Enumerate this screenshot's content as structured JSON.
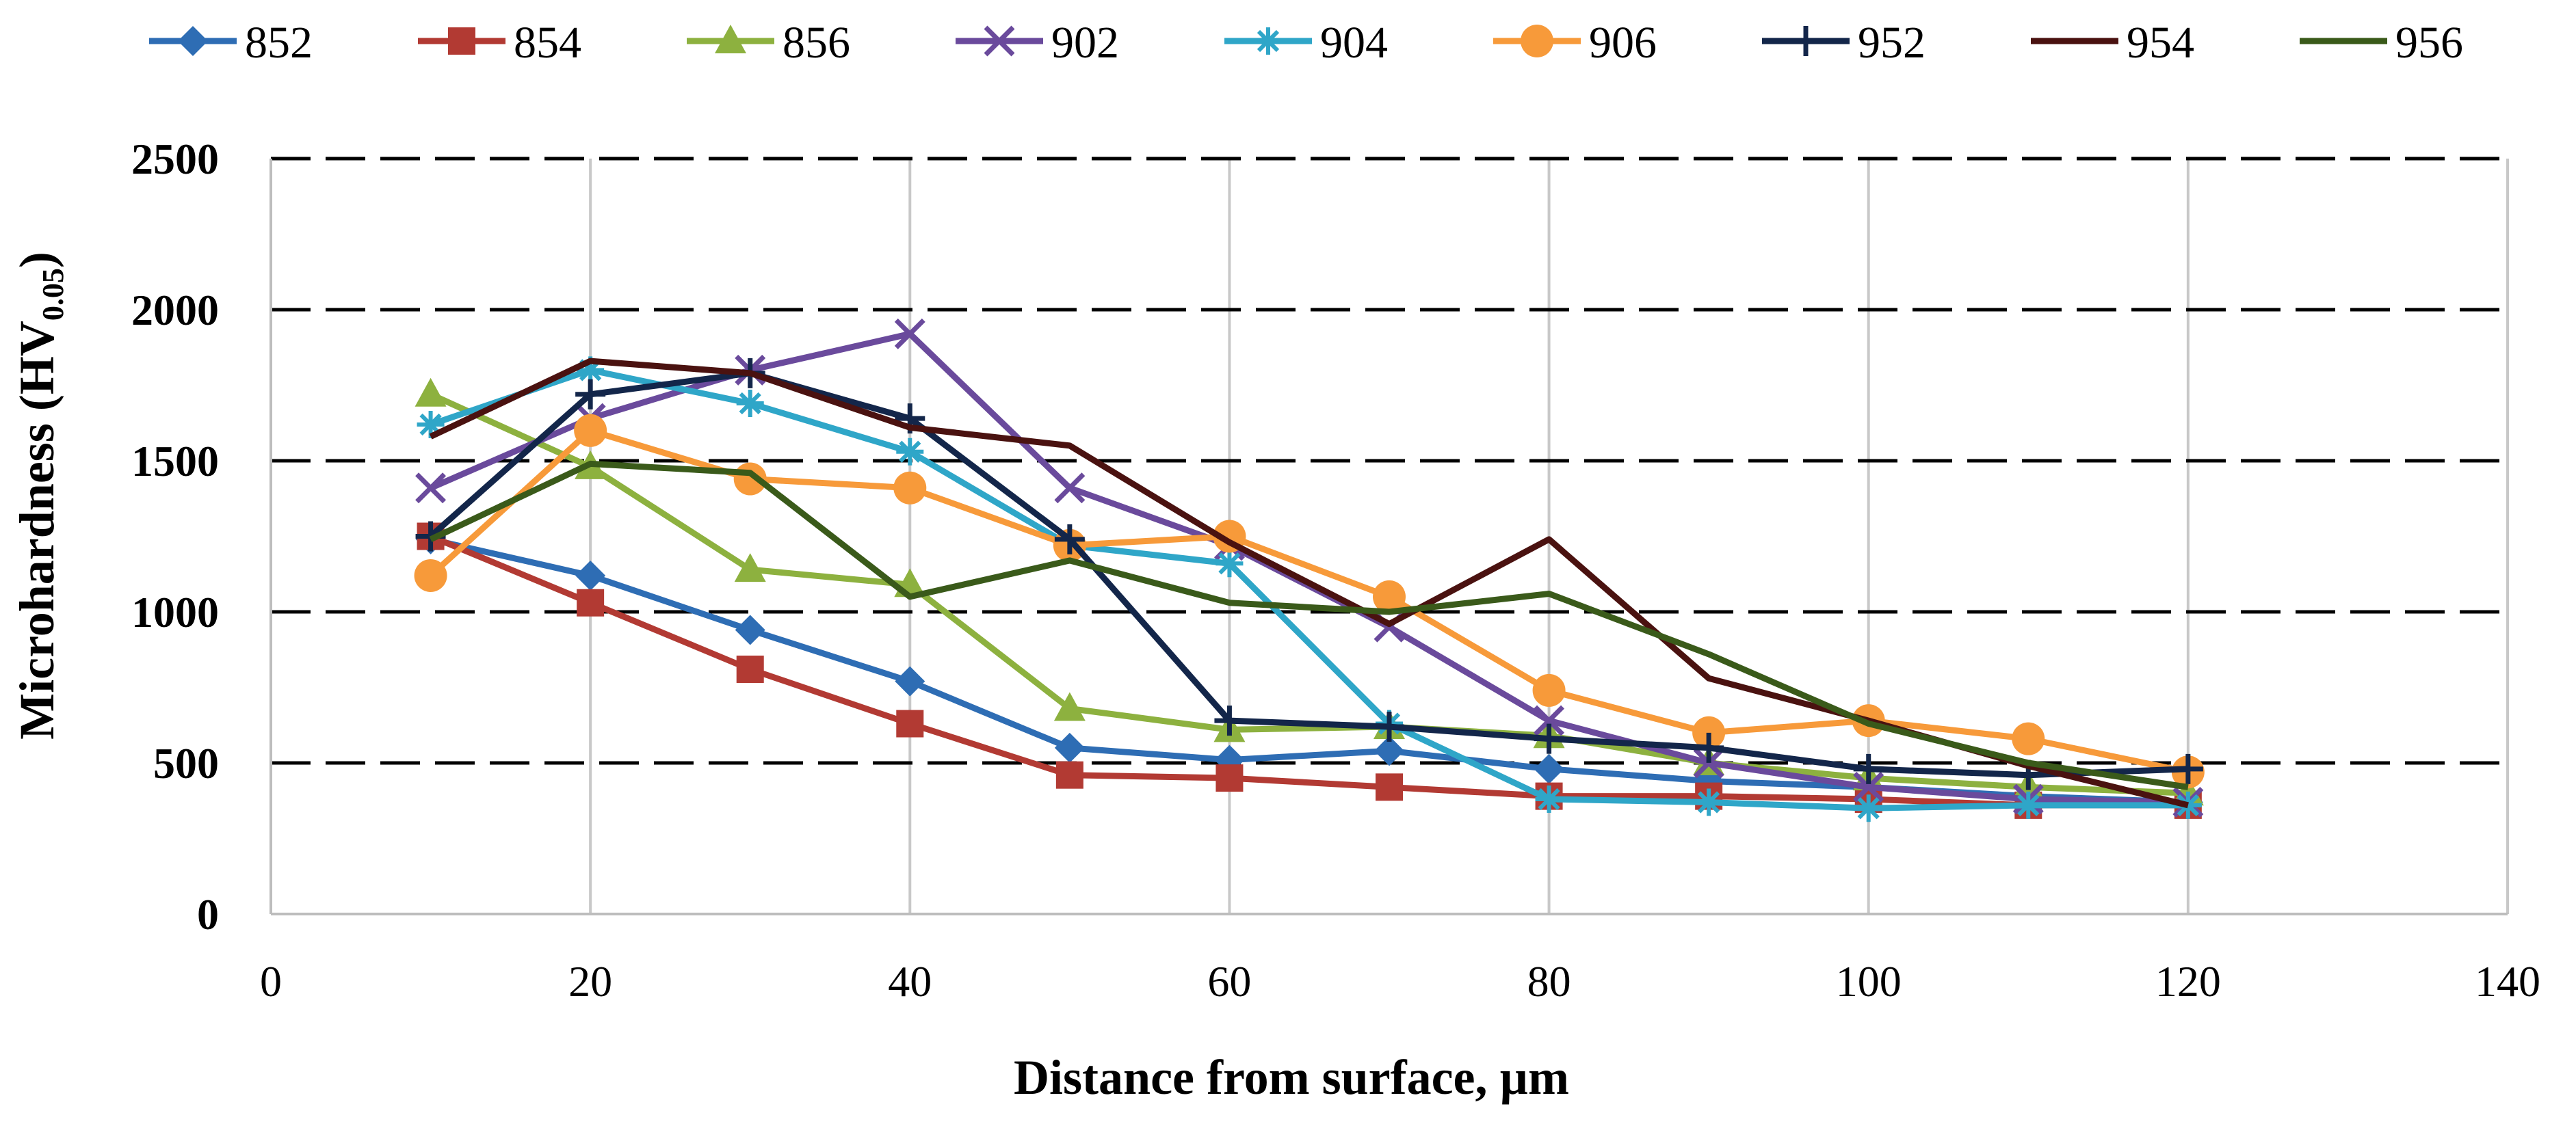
{
  "chart_data": {
    "type": "line",
    "title": "",
    "xlabel": "Distance from surface, µm",
    "ylabel_main": "Microhardness (HV",
    "ylabel_sub": "0.05",
    "ylabel_close": ")",
    "xlim": [
      0,
      140
    ],
    "ylim": [
      0,
      2500
    ],
    "xticks": [
      "0",
      "20",
      "40",
      "60",
      "80",
      "100",
      "120",
      "140"
    ],
    "yticks": [
      "0",
      "500",
      "1000",
      "1500",
      "2000",
      "2500"
    ],
    "grid": {
      "horizontal": "dashed",
      "vertical": "solid"
    },
    "legend_position": "top",
    "x": [
      10,
      20,
      30,
      40,
      50,
      60,
      70,
      80,
      90,
      100,
      110,
      120
    ],
    "series": [
      {
        "name": "852",
        "color": "#2E6DB4",
        "marker": "diamond",
        "values": [
          1240,
          1120,
          940,
          770,
          550,
          510,
          540,
          480,
          440,
          420,
          390,
          370
        ]
      },
      {
        "name": "854",
        "color": "#B23A33",
        "marker": "square",
        "values": [
          1250,
          1030,
          810,
          630,
          460,
          450,
          420,
          390,
          390,
          380,
          360,
          360
        ]
      },
      {
        "name": "856",
        "color": "#8DB13F",
        "marker": "triangle",
        "values": [
          1720,
          1480,
          1140,
          1090,
          680,
          610,
          620,
          590,
          500,
          450,
          420,
          400
        ]
      },
      {
        "name": "902",
        "color": "#6A4A9C",
        "marker": "x",
        "values": [
          1410,
          1640,
          1800,
          1920,
          1410,
          1220,
          950,
          640,
          500,
          420,
          380,
          370
        ]
      },
      {
        "name": "904",
        "color": "#2FA6C8",
        "marker": "star",
        "values": [
          1620,
          1800,
          1690,
          1530,
          1220,
          1160,
          630,
          380,
          370,
          350,
          360,
          360
        ]
      },
      {
        "name": "906",
        "color": "#F79A3A",
        "marker": "circle",
        "values": [
          1120,
          1600,
          1440,
          1410,
          1220,
          1250,
          1050,
          740,
          600,
          640,
          580,
          470
        ]
      },
      {
        "name": "952",
        "color": "#13264A",
        "marker": "plus",
        "values": [
          1250,
          1720,
          1790,
          1640,
          1240,
          640,
          620,
          580,
          550,
          480,
          460,
          480
        ]
      },
      {
        "name": "954",
        "color": "#4A1210",
        "marker": "none",
        "values": [
          1580,
          1830,
          1790,
          1610,
          1550,
          1230,
          960,
          1240,
          780,
          640,
          490,
          360
        ]
      },
      {
        "name": "956",
        "color": "#3A5A1A",
        "marker": "none",
        "values": [
          1240,
          1490,
          1460,
          1050,
          1170,
          1030,
          1000,
          1060,
          860,
          630,
          500,
          420
        ]
      }
    ]
  }
}
